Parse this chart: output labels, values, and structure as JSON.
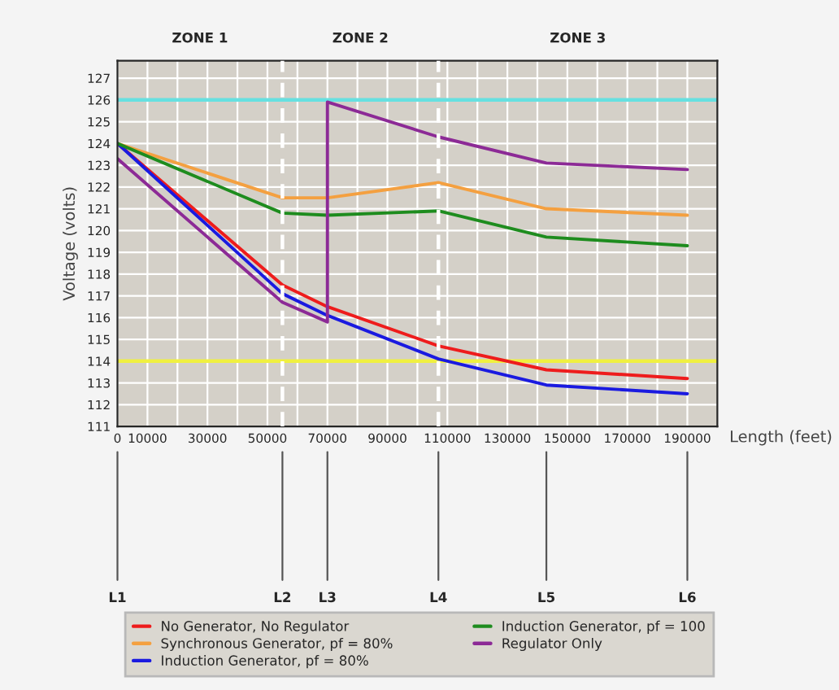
{
  "chart_data": {
    "type": "line",
    "xlabel": "Length (feet)",
    "ylabel": "Voltage (volts)",
    "xlim": [
      0,
      200000
    ],
    "ylim": [
      111,
      127.8
    ],
    "xticks": [
      0,
      10000,
      {
        "value": 20000,
        "label": null
      },
      30000,
      {
        "value": 40000,
        "label": null
      },
      50000,
      {
        "value": 60000,
        "label": null
      },
      70000,
      {
        "value": 80000,
        "label": null
      },
      90000,
      {
        "value": 100000,
        "label": null
      },
      110000,
      {
        "value": 120000,
        "label": null
      },
      130000,
      {
        "value": 140000,
        "label": null
      },
      150000,
      {
        "value": 160000,
        "label": null
      },
      170000,
      {
        "value": 180000,
        "label": null
      },
      190000
    ],
    "yticks": [
      111,
      112,
      113,
      114,
      115,
      116,
      117,
      118,
      119,
      120,
      121,
      122,
      123,
      124,
      125,
      126,
      127
    ],
    "annotations": [
      "ZONE 1",
      "ZONE 2",
      "ZONE 3"
    ],
    "grid": true,
    "legend": "bottom",
    "marker": "none",
    "line_style": "solid",
    "series": [
      {
        "name": "No Generator, No Regulator",
        "color": "#ee1c1c",
        "x": [
          0,
          55000,
          70000,
          107000,
          143000,
          190000
        ],
        "values": [
          124,
          117.5,
          116.5,
          114.7,
          113.6,
          113.2
        ]
      },
      {
        "name": "Synchronous Generator, pf = 80%",
        "color": "#f4a040",
        "x": [
          0,
          55000,
          70000,
          107000,
          143000,
          190000
        ],
        "values": [
          124,
          121.5,
          121.5,
          122.2,
          121.0,
          120.7
        ]
      },
      {
        "name": "Induction Generator, pf = 80%",
        "color": "#1a1ae0",
        "x": [
          0,
          55000,
          70000,
          107000,
          143000,
          190000
        ],
        "values": [
          124,
          117.1,
          116.1,
          114.1,
          112.9,
          112.5
        ]
      },
      {
        "name": "Induction Generator, pf = 100",
        "color": "#1e8c1e",
        "x": [
          0,
          55000,
          70000,
          107000,
          143000,
          190000
        ],
        "values": [
          124,
          120.8,
          120.7,
          120.9,
          119.7,
          119.3
        ]
      },
      {
        "name": "Regulator Only",
        "color": "#8c2a96",
        "x": [
          0,
          55000,
          70000,
          70000,
          107000,
          143000,
          190000
        ],
        "values": [
          123.3,
          116.7,
          115.8,
          125.9,
          124.3,
          123.1,
          122.8
        ]
      }
    ],
    "ref_lines": [
      {
        "axis": "y",
        "value": 126,
        "color": "#66e0e0",
        "line_style": "solid"
      },
      {
        "axis": "y",
        "value": 114,
        "color": "#f0f040",
        "line_style": "solid"
      },
      {
        "axis": "x",
        "value": 55000,
        "color": "#ffffff",
        "line_style": "dashed"
      },
      {
        "axis": "x",
        "value": 107000,
        "color": "#ffffff",
        "line_style": "dashed"
      },
      {
        "axis": "x",
        "value": 0,
        "label": "L1",
        "color": "#555555",
        "line_style": "solid"
      },
      {
        "axis": "x",
        "value": 55000,
        "label": "L2",
        "color": "#555555",
        "line_style": "solid"
      },
      {
        "axis": "x",
        "value": 70000,
        "label": "L3",
        "color": "#555555",
        "line_style": "solid"
      },
      {
        "axis": "x",
        "value": 107000,
        "label": "L4",
        "color": "#555555",
        "line_style": "solid"
      },
      {
        "axis": "x",
        "value": 143000,
        "label": "L5",
        "color": "#555555",
        "line_style": "solid"
      },
      {
        "axis": "x",
        "value": 190000,
        "label": "L6",
        "color": "#555555",
        "line_style": "solid"
      }
    ]
  }
}
